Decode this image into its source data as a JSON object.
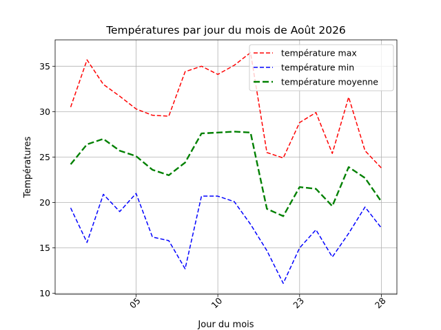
{
  "chart_data": {
    "type": "line",
    "title": "Températures par jour du mois de Août 2026",
    "xlabel": "Jour du mois",
    "ylabel": "Températures",
    "ylim": [
      9.9,
      37.9
    ],
    "y_ticks": [
      10,
      15,
      20,
      25,
      30,
      35
    ],
    "x_tick_labels": [
      "05",
      "10",
      "23",
      "28"
    ],
    "grid": true,
    "legend_position": "upper right",
    "x": [
      1,
      2,
      3,
      4,
      5,
      6,
      7,
      8,
      9,
      10,
      11,
      12,
      13,
      14,
      15,
      16,
      17,
      18,
      19,
      20
    ],
    "series": [
      {
        "name": "température max",
        "color": "#ff0000",
        "style": "dashed",
        "values": [
          30.5,
          35.7,
          33.0,
          31.7,
          30.3,
          29.6,
          29.5,
          34.4,
          35.0,
          34.1,
          35.1,
          36.5,
          25.5,
          24.9,
          28.8,
          29.9,
          25.4,
          31.6,
          25.7,
          23.8
        ]
      },
      {
        "name": "température min",
        "color": "#0000ff",
        "style": "dashed",
        "values": [
          19.4,
          15.6,
          20.9,
          19.0,
          21.0,
          16.2,
          15.8,
          12.7,
          20.7,
          20.7,
          20.1,
          17.6,
          14.7,
          11.1,
          15.0,
          17.0,
          14.0,
          16.6,
          19.5,
          17.2
        ]
      },
      {
        "name": "température moyenne",
        "color": "#008000",
        "style": "dashed-bold",
        "values": [
          24.2,
          26.4,
          27.0,
          25.7,
          25.1,
          23.6,
          23.0,
          24.4,
          27.6,
          27.7,
          27.8,
          27.7,
          19.3,
          18.5,
          21.7,
          21.5,
          19.6,
          23.9,
          22.7,
          20.1
        ]
      }
    ]
  }
}
